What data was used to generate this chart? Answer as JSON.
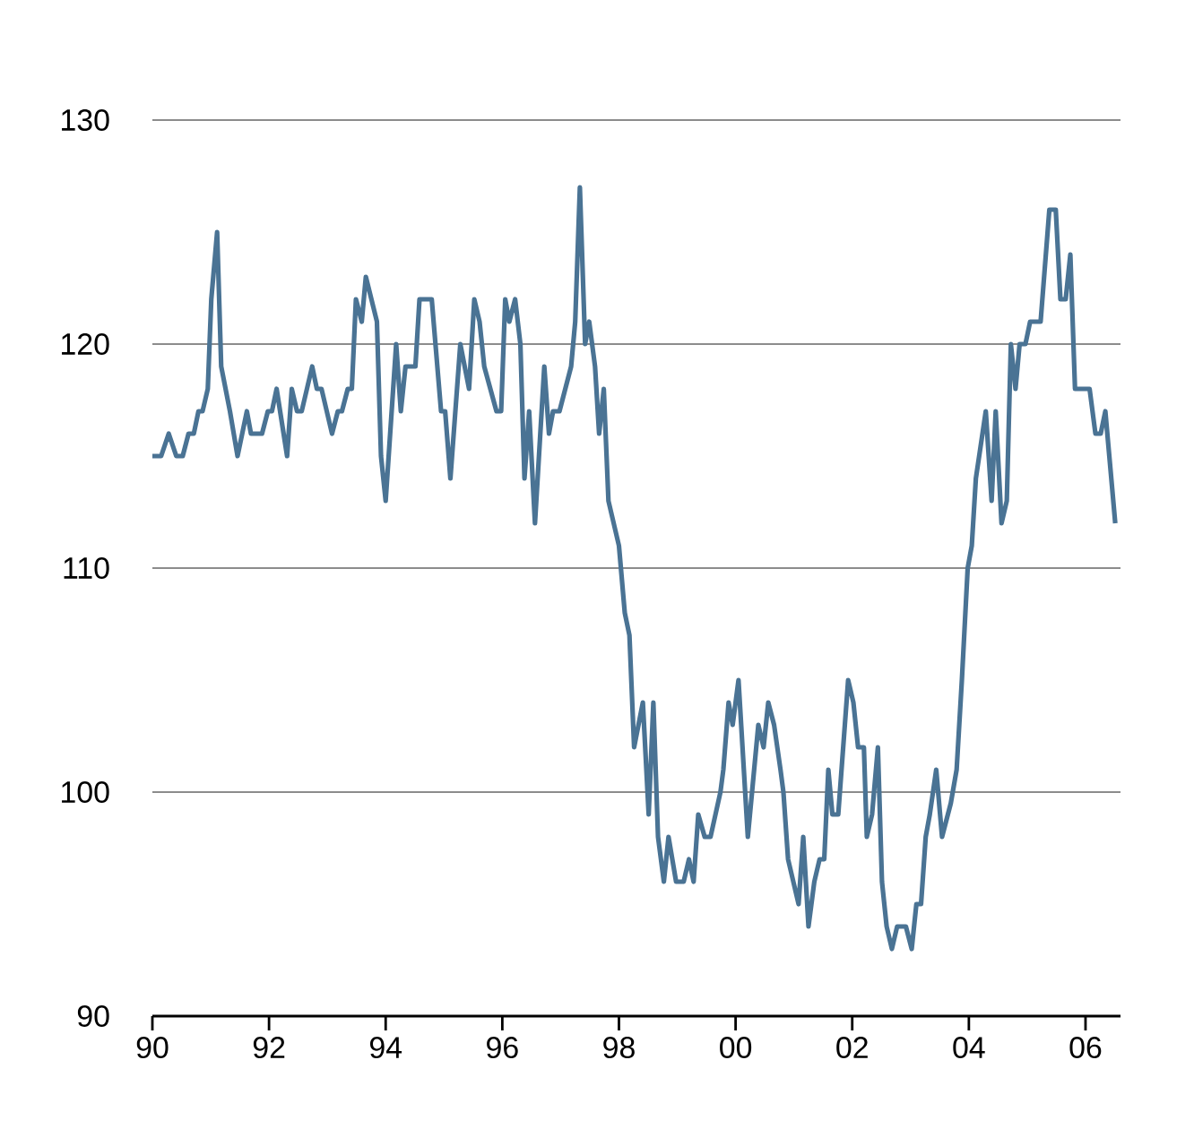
{
  "chart_data": {
    "type": "line",
    "color": "#4a7394",
    "grid": "y",
    "marker": "none",
    "line_style": "solid",
    "xlim": [
      1990,
      2006.6
    ],
    "ylim": [
      90,
      130
    ],
    "xticks": [
      {
        "value": 1990,
        "label": "90"
      },
      {
        "value": 1992,
        "label": "92"
      },
      {
        "value": 1994,
        "label": "94"
      },
      {
        "value": 1996,
        "label": "96"
      },
      {
        "value": 1998,
        "label": "98"
      },
      {
        "value": 2000,
        "label": "00"
      },
      {
        "value": 2002,
        "label": "02"
      },
      {
        "value": 2004,
        "label": "04"
      },
      {
        "value": 2006,
        "label": "06"
      }
    ],
    "yticks": [
      90,
      100,
      110,
      120,
      130
    ],
    "x": [
      1990.0,
      1990.15,
      1990.28,
      1990.41,
      1990.52,
      1990.62,
      1990.71,
      1990.79,
      1990.86,
      1990.95,
      1991.01,
      1991.11,
      1991.18,
      1991.33,
      1991.46,
      1991.62,
      1991.69,
      1991.88,
      1991.98,
      1992.05,
      1992.13,
      1992.31,
      1992.39,
      1992.48,
      1992.56,
      1992.74,
      1992.82,
      1992.9,
      1993.08,
      1993.18,
      1993.25,
      1993.35,
      1993.42,
      1993.49,
      1993.59,
      1993.66,
      1993.85,
      1993.92,
      1994.0,
      1994.18,
      1994.26,
      1994.34,
      1994.51,
      1994.58,
      1994.79,
      1994.95,
      1995.02,
      1995.11,
      1995.28,
      1995.43,
      1995.52,
      1995.61,
      1995.69,
      1995.9,
      1995.98,
      1996.05,
      1996.12,
      1996.22,
      1996.31,
      1996.38,
      1996.46,
      1996.56,
      1996.72,
      1996.8,
      1996.87,
      1996.98,
      1997.18,
      1997.25,
      1997.33,
      1997.42,
      1997.49,
      1997.59,
      1997.66,
      1997.74,
      1997.82,
      1998.0,
      1998.1,
      1998.18,
      1998.26,
      1998.41,
      1998.51,
      1998.59,
      1998.67,
      1998.77,
      1998.85,
      1998.98,
      1999.11,
      1999.2,
      1999.28,
      1999.36,
      1999.47,
      1999.57,
      1999.74,
      1999.79,
      1999.88,
      1999.95,
      2000.05,
      2000.21,
      2000.39,
      2000.48,
      2000.56,
      2000.66,
      2000.77,
      2000.82,
      2000.9,
      2001.08,
      2001.16,
      2001.25,
      2001.35,
      2001.44,
      2001.52,
      2001.59,
      2001.66,
      2001.76,
      2001.93,
      2002.02,
      2002.1,
      2002.2,
      2002.25,
      2002.34,
      2002.44,
      2002.51,
      2002.59,
      2002.68,
      2002.77,
      2002.92,
      2003.02,
      2003.1,
      2003.18,
      2003.26,
      2003.33,
      2003.44,
      2003.54,
      2003.69,
      2003.79,
      2003.88,
      2003.98,
      2004.05,
      2004.12,
      2004.29,
      2004.39,
      2004.46,
      2004.56,
      2004.65,
      2004.72,
      2004.8,
      2004.87,
      2004.97,
      2005.05,
      2005.23,
      2005.38,
      2005.49,
      2005.57,
      2005.66,
      2005.74,
      2005.82,
      2006.07,
      2006.17,
      2006.26,
      2006.34,
      2006.51
    ],
    "values": [
      115,
      115,
      116,
      115,
      115,
      116,
      116,
      117,
      117,
      118,
      122,
      125,
      119,
      117,
      115,
      117,
      116,
      116,
      117,
      117,
      118,
      115,
      118,
      117,
      117,
      119,
      118,
      118,
      116,
      117,
      117,
      118,
      118,
      122,
      121,
      123,
      121,
      115,
      113,
      120,
      117,
      119,
      119,
      122,
      122,
      117,
      117,
      114,
      120,
      118,
      122,
      121,
      119,
      117,
      117,
      122,
      121,
      122,
      120,
      114,
      117,
      112,
      119,
      116,
      117,
      117,
      119,
      121,
      127,
      120,
      121,
      119,
      116,
      118,
      113,
      111,
      108,
      107,
      102,
      104,
      99,
      104,
      98,
      96,
      98,
      96,
      96,
      97,
      96,
      99,
      98,
      98,
      100,
      101,
      104,
      103,
      105,
      98,
      103,
      102,
      104,
      103,
      101,
      100,
      97,
      95,
      98,
      94,
      96,
      97,
      97,
      101,
      99,
      99,
      105,
      104,
      102,
      102,
      98,
      99,
      102,
      96,
      94,
      93,
      94,
      94,
      93,
      95,
      95,
      98,
      99,
      101,
      98,
      99.5,
      101,
      105,
      110,
      111,
      114,
      117,
      113,
      117,
      112,
      113,
      120,
      118,
      120,
      120,
      121,
      121,
      126,
      126,
      122,
      122,
      124,
      118,
      118,
      116,
      116,
      117,
      112
    ]
  }
}
